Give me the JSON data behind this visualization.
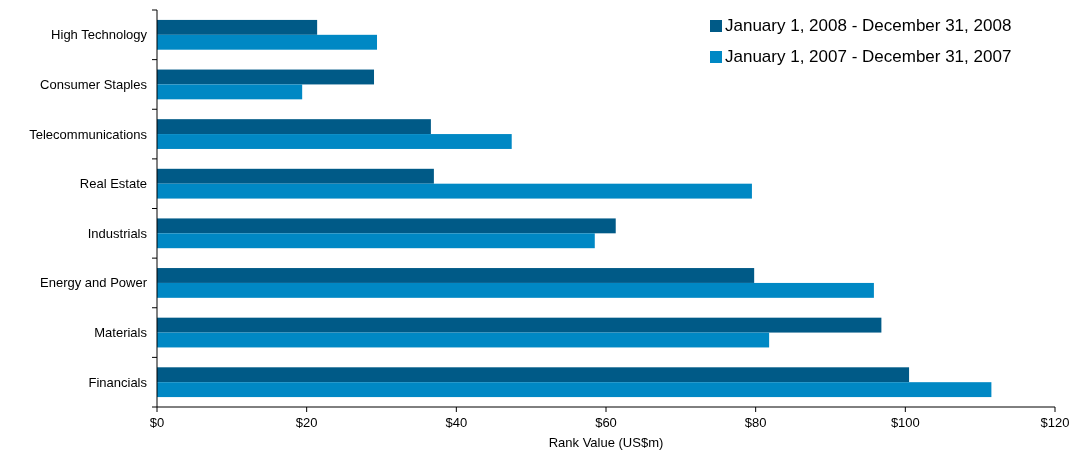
{
  "chart_data": {
    "type": "bar",
    "orientation": "horizontal",
    "xlabel": "Rank Value (US$m)",
    "categories": [
      "High Technology",
      "Consumer Staples",
      "Telecommunications",
      "Real Estate",
      "Industrials",
      "Energy and Power",
      "Materials",
      "Financials"
    ],
    "series": [
      {
        "name": "January 1, 2008 - December 31, 2008",
        "color": "#005a87",
        "values": [
          21.4,
          29.0,
          36.6,
          37.0,
          61.3,
          79.8,
          96.8,
          100.5
        ]
      },
      {
        "name": "January 1, 2007 - December 31, 2007",
        "color": "#0088c4",
        "values": [
          29.4,
          19.4,
          47.4,
          79.5,
          58.5,
          95.8,
          81.8,
          111.5
        ]
      }
    ],
    "xlim": [
      0,
      120
    ],
    "xticks": [
      {
        "value": 0,
        "label": "$0"
      },
      {
        "value": 20,
        "label": "$20"
      },
      {
        "value": 40,
        "label": "$40"
      },
      {
        "value": 60,
        "label": "$60"
      },
      {
        "value": 80,
        "label": "$80"
      },
      {
        "value": 100,
        "label": "$100"
      },
      {
        "value": 120,
        "label": "$120"
      }
    ],
    "legend": "top right",
    "grid": false
  }
}
